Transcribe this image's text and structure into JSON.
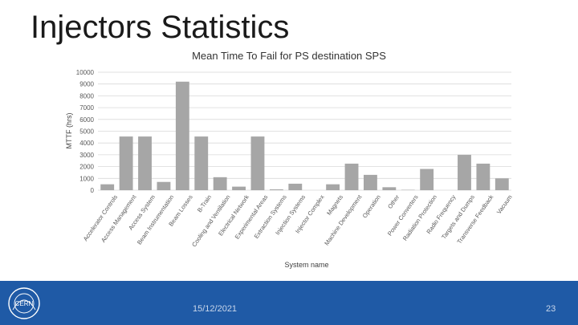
{
  "slide": {
    "title": "Injectors Statistics",
    "footer_date": "15/12/2021",
    "page_number": "23",
    "logo_text": "CERN"
  },
  "colors": {
    "bar": "#a6a6a6",
    "gridline": "#d9d9d9",
    "footer": "#1f5aa6"
  },
  "chart_data": {
    "type": "bar",
    "title": "Mean Time To Fail for PS destination SPS",
    "xlabel": "System name",
    "ylabel": "MTTF (hrs)",
    "ylim": [
      0,
      10000
    ],
    "yticks": [
      0,
      1000,
      2000,
      3000,
      4000,
      5000,
      6000,
      7000,
      8000,
      9000,
      10000
    ],
    "grid": true,
    "legend": "none",
    "categories": [
      "Accelerator Controls",
      "Access Management",
      "Access System",
      "Beam Instrumentation",
      "Beam Losses",
      "B-Train",
      "Cooling and Ventilation",
      "Electrical Network",
      "Experimental Areas",
      "Extraction Systems",
      "Injection Systems",
      "Injector Complex",
      "Magnets",
      "Machine Development",
      "Operation",
      "Other",
      "Power Converters",
      "Radiation Protection",
      "Radio Frequency",
      "Targets and Dumps",
      "Transverse Feedback",
      "Vacuum"
    ],
    "values": [
      500,
      4550,
      4550,
      700,
      9200,
      4550,
      1100,
      300,
      4550,
      70,
      550,
      0,
      500,
      2250,
      1300,
      250,
      30,
      1800,
      0,
      3000,
      2250,
      1000
    ]
  }
}
